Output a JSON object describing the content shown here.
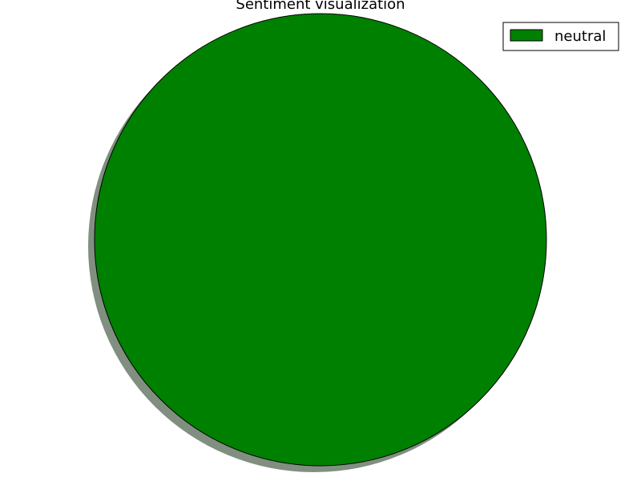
{
  "chart_data": {
    "type": "pie",
    "title": "Sentiment visualization",
    "slices": [
      {
        "label": "neutral",
        "value": 100,
        "color": "#008000"
      }
    ],
    "legend": {
      "placement": "top-right",
      "entries": [
        "neutral"
      ]
    },
    "shadow": true,
    "shadow_color": "#808f80",
    "edge_color": "#000000"
  }
}
